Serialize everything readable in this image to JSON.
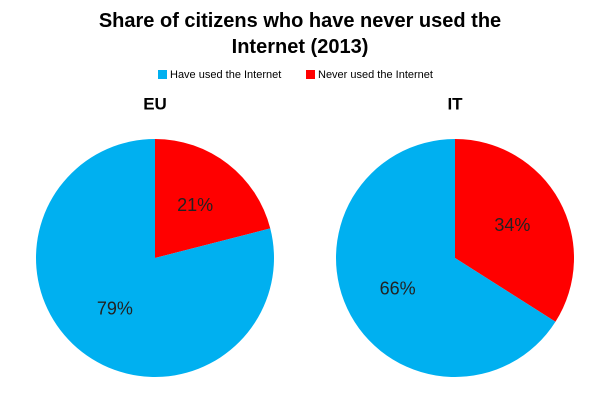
{
  "title": "Share of citizens who have never used the Internet (2013)",
  "legend": {
    "labels": [
      "Have used the Internet",
      "Never used the Internet"
    ],
    "colors": [
      "#00b0f0",
      "#ff0000"
    ]
  },
  "chart_data": [
    {
      "type": "pie",
      "title": "EU",
      "values": [
        79,
        21
      ],
      "value_labels": [
        "79%",
        "21%"
      ]
    },
    {
      "type": "pie",
      "title": "IT",
      "values": [
        66,
        34
      ],
      "value_labels": [
        "66%",
        "34%"
      ]
    }
  ]
}
